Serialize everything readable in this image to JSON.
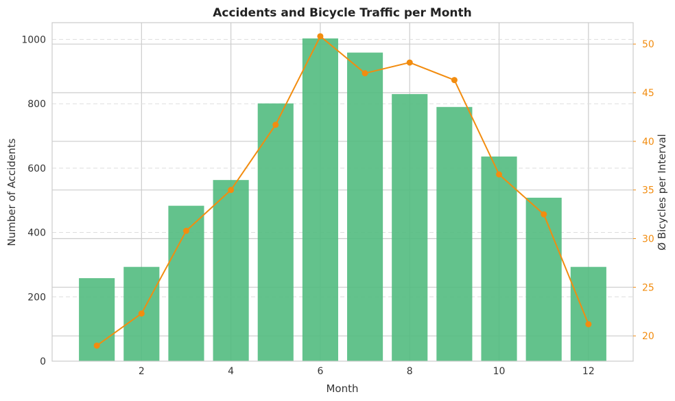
{
  "chart_data": {
    "type": "bar+line",
    "title": "Accidents and Bicycle Traffic per Month",
    "xlabel": "Month",
    "ylabel_left": "Number of Accidents",
    "ylabel_right": "Ø Bicycles per Interval",
    "months": [
      1,
      2,
      3,
      4,
      5,
      6,
      7,
      8,
      9,
      10,
      11,
      12
    ],
    "x_ticks": [
      2,
      4,
      6,
      8,
      10,
      12
    ],
    "xlim": [
      0.0,
      13.0
    ],
    "bars": {
      "axis": "left",
      "color": "#52bb80",
      "values": [
        258,
        293,
        483,
        563,
        801,
        1003,
        959,
        830,
        790,
        636,
        508,
        293
      ]
    },
    "line": {
      "axis": "right",
      "color": "#f28c0f",
      "values": [
        19.0,
        22.3,
        30.8,
        35.0,
        41.7,
        50.8,
        47.0,
        48.1,
        46.3,
        36.6,
        32.5,
        21.2
      ]
    },
    "ylim_left": [
      0,
      1052
    ],
    "yticks_left": [
      0,
      200,
      400,
      600,
      800,
      1000
    ],
    "ylim_right": [
      17.4,
      52.2
    ],
    "yticks_right": [
      20,
      25,
      30,
      35,
      40,
      45,
      50
    ],
    "grid": true
  }
}
